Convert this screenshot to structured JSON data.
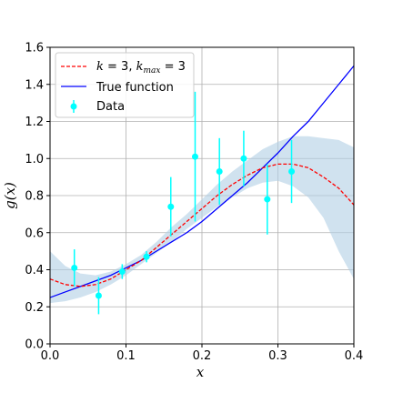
{
  "chart_data": {
    "type": "line",
    "xlabel": "x",
    "ylabel": "g(x)",
    "xlim": [
      0.0,
      0.4
    ],
    "ylim": [
      0.0,
      1.6
    ],
    "xticks": [
      "0.0",
      "0.1",
      "0.2",
      "0.3",
      "0.4"
    ],
    "yticks": [
      "0.0",
      "0.2",
      "0.4",
      "0.6",
      "0.8",
      "1.0",
      "1.2",
      "1.4",
      "1.6"
    ],
    "grid": true,
    "legend_position": "top-left",
    "legend": {
      "fit_label_parts": [
        "k",
        " = 3, ",
        "k",
        "max",
        " = 3"
      ],
      "true_label": "True function",
      "data_label": "Data"
    },
    "colors": {
      "fit": "#ff0000",
      "true": "#0000ff",
      "data": "#00ffff",
      "band": "#b0cfe5"
    },
    "series": [
      {
        "name": "True function",
        "style": "solid",
        "x": [
          0.0,
          0.02,
          0.04,
          0.06,
          0.08,
          0.1,
          0.12,
          0.14,
          0.16,
          0.18,
          0.2,
          0.22,
          0.24,
          0.26,
          0.28,
          0.3,
          0.32,
          0.34,
          0.36,
          0.38,
          0.4
        ],
        "y": [
          0.25,
          0.28,
          0.31,
          0.34,
          0.37,
          0.41,
          0.45,
          0.5,
          0.55,
          0.6,
          0.66,
          0.73,
          0.8,
          0.87,
          0.95,
          1.03,
          1.12,
          1.2,
          1.3,
          1.4,
          1.5
        ]
      },
      {
        "name": "k = 3, kmax = 3",
        "style": "dashed",
        "x": [
          0.0,
          0.02,
          0.04,
          0.06,
          0.08,
          0.1,
          0.12,
          0.14,
          0.16,
          0.18,
          0.2,
          0.22,
          0.24,
          0.26,
          0.28,
          0.3,
          0.32,
          0.34,
          0.36,
          0.38,
          0.4
        ],
        "y": [
          0.35,
          0.32,
          0.31,
          0.32,
          0.35,
          0.4,
          0.45,
          0.52,
          0.59,
          0.66,
          0.73,
          0.8,
          0.86,
          0.91,
          0.95,
          0.97,
          0.97,
          0.95,
          0.9,
          0.84,
          0.75
        ]
      },
      {
        "name": "Data",
        "style": "errorbar",
        "x": [
          0.032,
          0.064,
          0.095,
          0.127,
          0.159,
          0.191,
          0.223,
          0.255,
          0.286,
          0.318
        ],
        "y": [
          0.41,
          0.26,
          0.39,
          0.47,
          0.74,
          1.01,
          0.93,
          1.0,
          0.78,
          0.93
        ],
        "yerr": [
          0.1,
          0.1,
          0.04,
          0.03,
          0.16,
          0.35,
          0.18,
          0.15,
          0.19,
          0.17
        ]
      }
    ],
    "band": {
      "x": [
        0.0,
        0.02,
        0.04,
        0.06,
        0.08,
        0.1,
        0.12,
        0.14,
        0.16,
        0.18,
        0.2,
        0.22,
        0.24,
        0.26,
        0.28,
        0.3,
        0.32,
        0.34,
        0.36,
        0.38,
        0.4
      ],
      "lower": [
        0.22,
        0.23,
        0.25,
        0.28,
        0.32,
        0.37,
        0.43,
        0.49,
        0.55,
        0.62,
        0.68,
        0.74,
        0.79,
        0.84,
        0.87,
        0.88,
        0.85,
        0.79,
        0.68,
        0.5,
        0.35
      ],
      "upper": [
        0.5,
        0.42,
        0.38,
        0.37,
        0.39,
        0.43,
        0.48,
        0.55,
        0.63,
        0.7,
        0.78,
        0.86,
        0.93,
        0.99,
        1.05,
        1.09,
        1.12,
        1.12,
        1.11,
        1.1,
        1.06
      ]
    }
  }
}
